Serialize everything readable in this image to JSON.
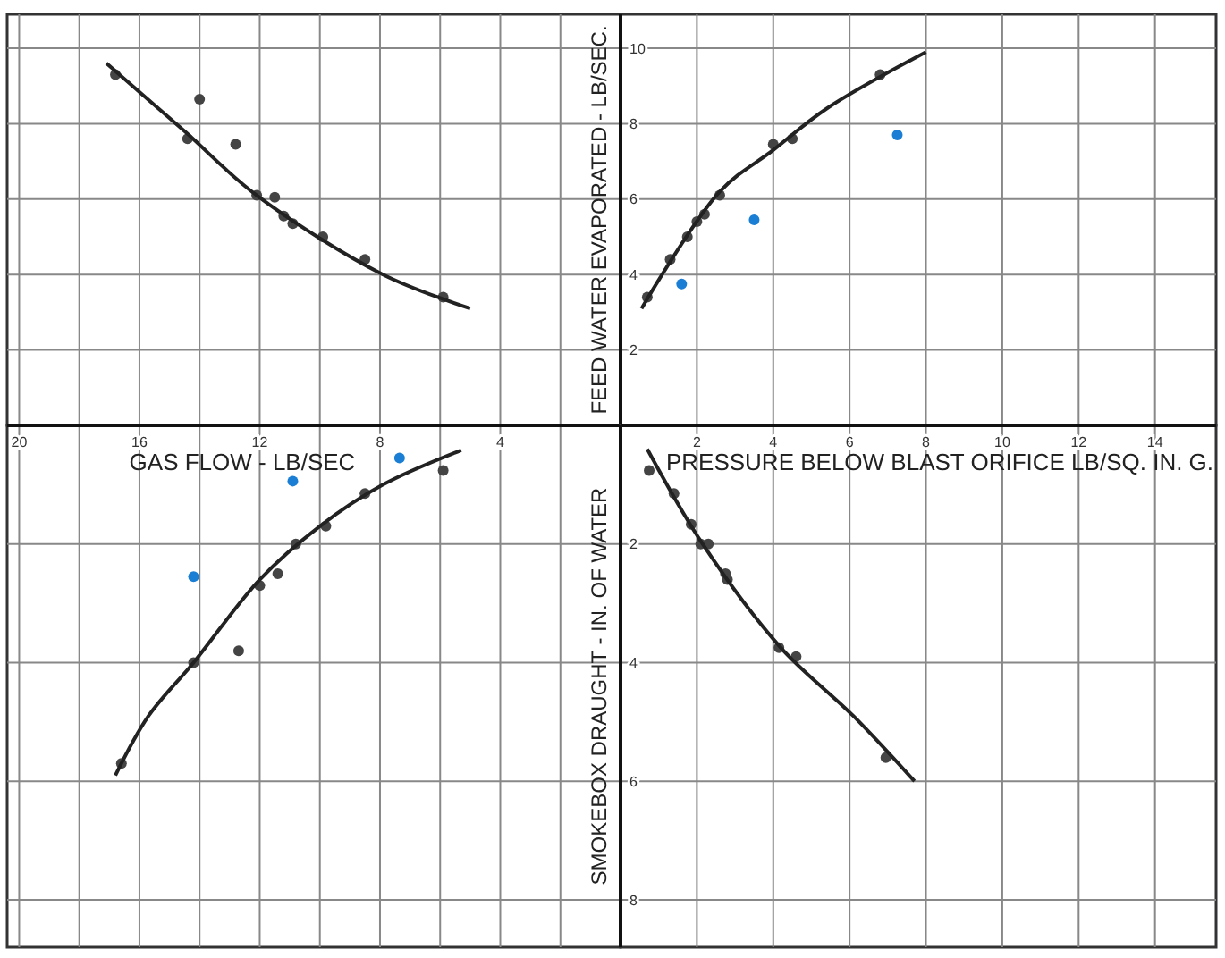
{
  "chart_data": [
    {
      "type": "scatter",
      "xlim": [
        20.4,
        0
      ],
      "ylim": [
        0,
        10.9
      ],
      "xticks": [
        {
          "value": 20,
          "label": null
        },
        {
          "value": 18,
          "label": null
        },
        {
          "value": 16,
          "label": null
        },
        {
          "value": 14,
          "label": null
        },
        {
          "value": 12,
          "label": null
        },
        {
          "value": 10,
          "label": null
        },
        {
          "value": 8,
          "label": null
        },
        {
          "value": 6,
          "label": null
        },
        {
          "value": 4,
          "label": null
        },
        {
          "value": 2,
          "label": null
        }
      ],
      "yticks": [
        {
          "value": 2,
          "label": null
        },
        {
          "value": 4,
          "label": null
        },
        {
          "value": 6,
          "label": null
        },
        {
          "value": 8,
          "label": null
        },
        {
          "value": 10,
          "label": null
        }
      ],
      "grid": true,
      "tick_labels": false,
      "marker": "circle",
      "series": [
        {
          "color": "#444444",
          "x": [
            16.8,
            14.0,
            14.4,
            12.8,
            12.1,
            11.5,
            11.2,
            10.9,
            9.9,
            8.5,
            5.9
          ],
          "values": [
            9.3,
            8.65,
            7.6,
            7.45,
            6.1,
            6.05,
            5.55,
            5.35,
            5.0,
            4.4,
            3.4
          ]
        },
        {
          "type": "line",
          "marker": "none",
          "line_style": "solid",
          "color": "#222222",
          "x": [
            17.1,
            14.5,
            12.1,
            7.9,
            5.0
          ],
          "values": [
            9.6,
            7.8,
            6.1,
            4.0,
            3.1
          ]
        }
      ]
    },
    {
      "type": "scatter",
      "xlim": [
        0,
        15.6
      ],
      "ylim": [
        0,
        10.9
      ],
      "xticks": [
        2,
        4,
        6,
        8,
        10,
        12,
        14
      ],
      "yticks": [
        2,
        4,
        6,
        8,
        10
      ],
      "grid": true,
      "tick_labels": "y",
      "marker": "circle",
      "ylabel": "FEED WATER EVAPORATED - LB/SEC.",
      "series": [
        {
          "color": "#444444",
          "x": [
            0.7,
            1.3,
            1.75,
            2.0,
            2.2,
            2.6,
            4.0,
            4.5,
            6.8
          ],
          "values": [
            3.4,
            4.4,
            5.0,
            5.4,
            5.6,
            6.1,
            7.45,
            7.6,
            9.3
          ]
        },
        {
          "color": "#1a7fd4",
          "x": [
            1.6,
            3.5,
            7.25
          ],
          "values": [
            3.75,
            5.45,
            7.7
          ]
        },
        {
          "type": "line",
          "marker": "none",
          "line_style": "solid",
          "color": "#222222",
          "x": [
            0.55,
            2.6,
            4.0,
            5.4,
            8.0
          ],
          "values": [
            3.1,
            6.2,
            7.3,
            8.4,
            9.9
          ]
        }
      ]
    },
    {
      "type": "scatter",
      "xlim": [
        20.4,
        0
      ],
      "ylim": [
        8.8,
        0
      ],
      "xticks": [
        {
          "value": 20,
          "label": "20"
        },
        {
          "value": 18,
          "label": null
        },
        {
          "value": 16,
          "label": "16"
        },
        {
          "value": 14,
          "label": null
        },
        {
          "value": 12,
          "label": "12"
        },
        {
          "value": 10,
          "label": null
        },
        {
          "value": 8,
          "label": "8"
        },
        {
          "value": 6,
          "label": null
        },
        {
          "value": 4,
          "label": "4"
        },
        {
          "value": 2,
          "label": null
        }
      ],
      "yticks": [
        2,
        4,
        6,
        8
      ],
      "grid": true,
      "tick_labels": "x",
      "marker": "circle",
      "xlabel": "GAS FLOW - LB/SEC",
      "series": [
        {
          "color": "#444444",
          "x": [
            5.9,
            8.5,
            9.8,
            10.8,
            11.4,
            12.0,
            12.7,
            14.2,
            16.6
          ],
          "values": [
            0.76,
            1.15,
            1.7,
            2.0,
            2.5,
            2.7,
            3.8,
            4.0,
            5.7
          ]
        },
        {
          "color": "#1a7fd4",
          "x": [
            7.35,
            10.9,
            14.2
          ],
          "values": [
            0.55,
            0.94,
            2.55
          ]
        },
        {
          "type": "line",
          "marker": "none",
          "line_style": "solid",
          "color": "#222222",
          "x": [
            16.8,
            15.7,
            14.2,
            12.0,
            10.0,
            7.9,
            5.3
          ],
          "values": [
            5.9,
            4.9,
            4.0,
            2.6,
            1.7,
            1.0,
            0.42
          ]
        }
      ]
    },
    {
      "type": "scatter",
      "xlim": [
        0,
        15.6
      ],
      "ylim": [
        8.8,
        0
      ],
      "xticks": [
        2,
        4,
        6,
        8,
        10,
        12,
        14
      ],
      "yticks": [
        2,
        4,
        6,
        8
      ],
      "grid": true,
      "marker": "circle",
      "xlabel": "PRESSURE BELOW BLAST ORIFICE LB/SQ. IN. G.",
      "ylabel": "SMOKEBOX DRAUGHT - IN. OF WATER",
      "series": [
        {
          "color": "#444444",
          "x": [
            0.75,
            1.4,
            1.85,
            2.1,
            2.3,
            2.75,
            2.8,
            4.15,
            4.6,
            6.95
          ],
          "values": [
            0.76,
            1.15,
            1.67,
            2.0,
            2.0,
            2.5,
            2.6,
            3.75,
            3.9,
            5.6
          ]
        },
        {
          "type": "line",
          "marker": "none",
          "line_style": "solid",
          "color": "#222222",
          "x": [
            0.7,
            2.15,
            4.2,
            6.1,
            7.7
          ],
          "values": [
            0.4,
            2.0,
            3.75,
            4.9,
            6.0
          ]
        }
      ]
    }
  ]
}
